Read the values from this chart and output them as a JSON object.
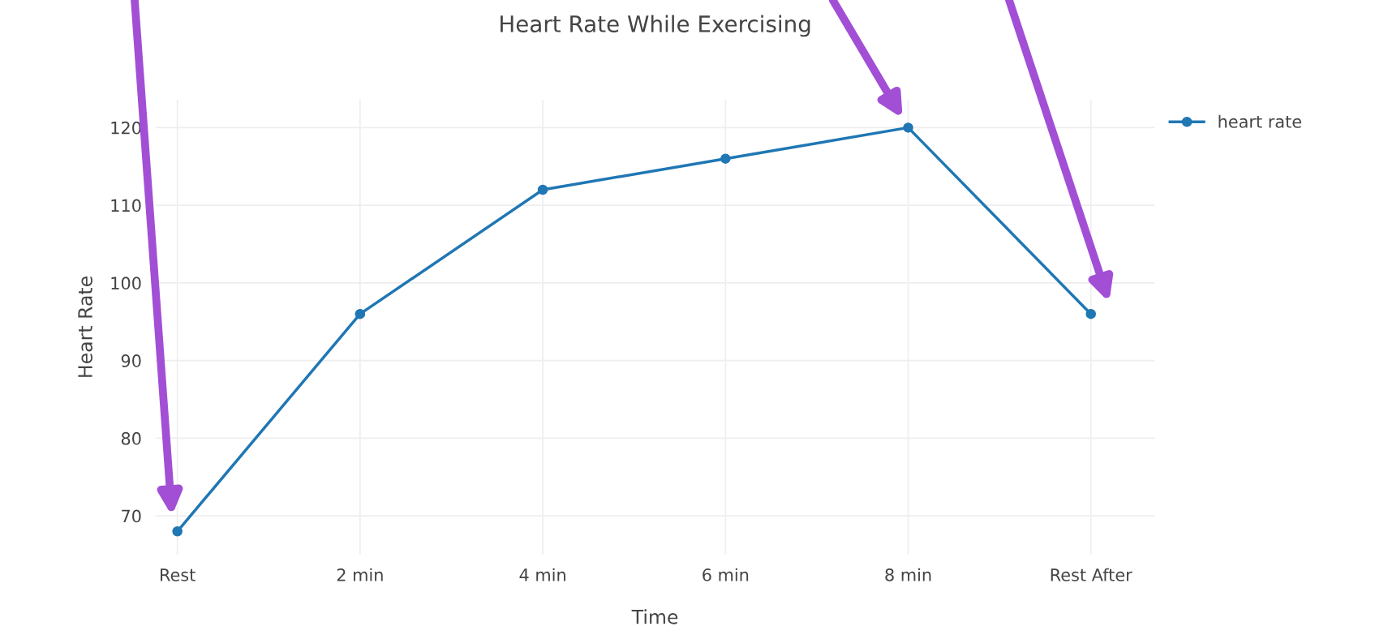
{
  "chart_data": {
    "type": "line",
    "title": "Heart Rate While Exercising",
    "xlabel": "Time",
    "ylabel": "Heart Rate",
    "categories": [
      "Rest",
      "2 min",
      "4 min",
      "6 min",
      "8 min",
      "Rest After"
    ],
    "series": [
      {
        "name": "heart rate",
        "color": "#1f77b4",
        "values": [
          68,
          96,
          112,
          116,
          120,
          96
        ]
      }
    ],
    "ylim": [
      65,
      123.6
    ],
    "yticks": [
      70,
      80,
      90,
      100,
      110,
      120
    ],
    "grid": true,
    "legend": "top right",
    "marker": "circle",
    "line_style": "solid"
  }
}
